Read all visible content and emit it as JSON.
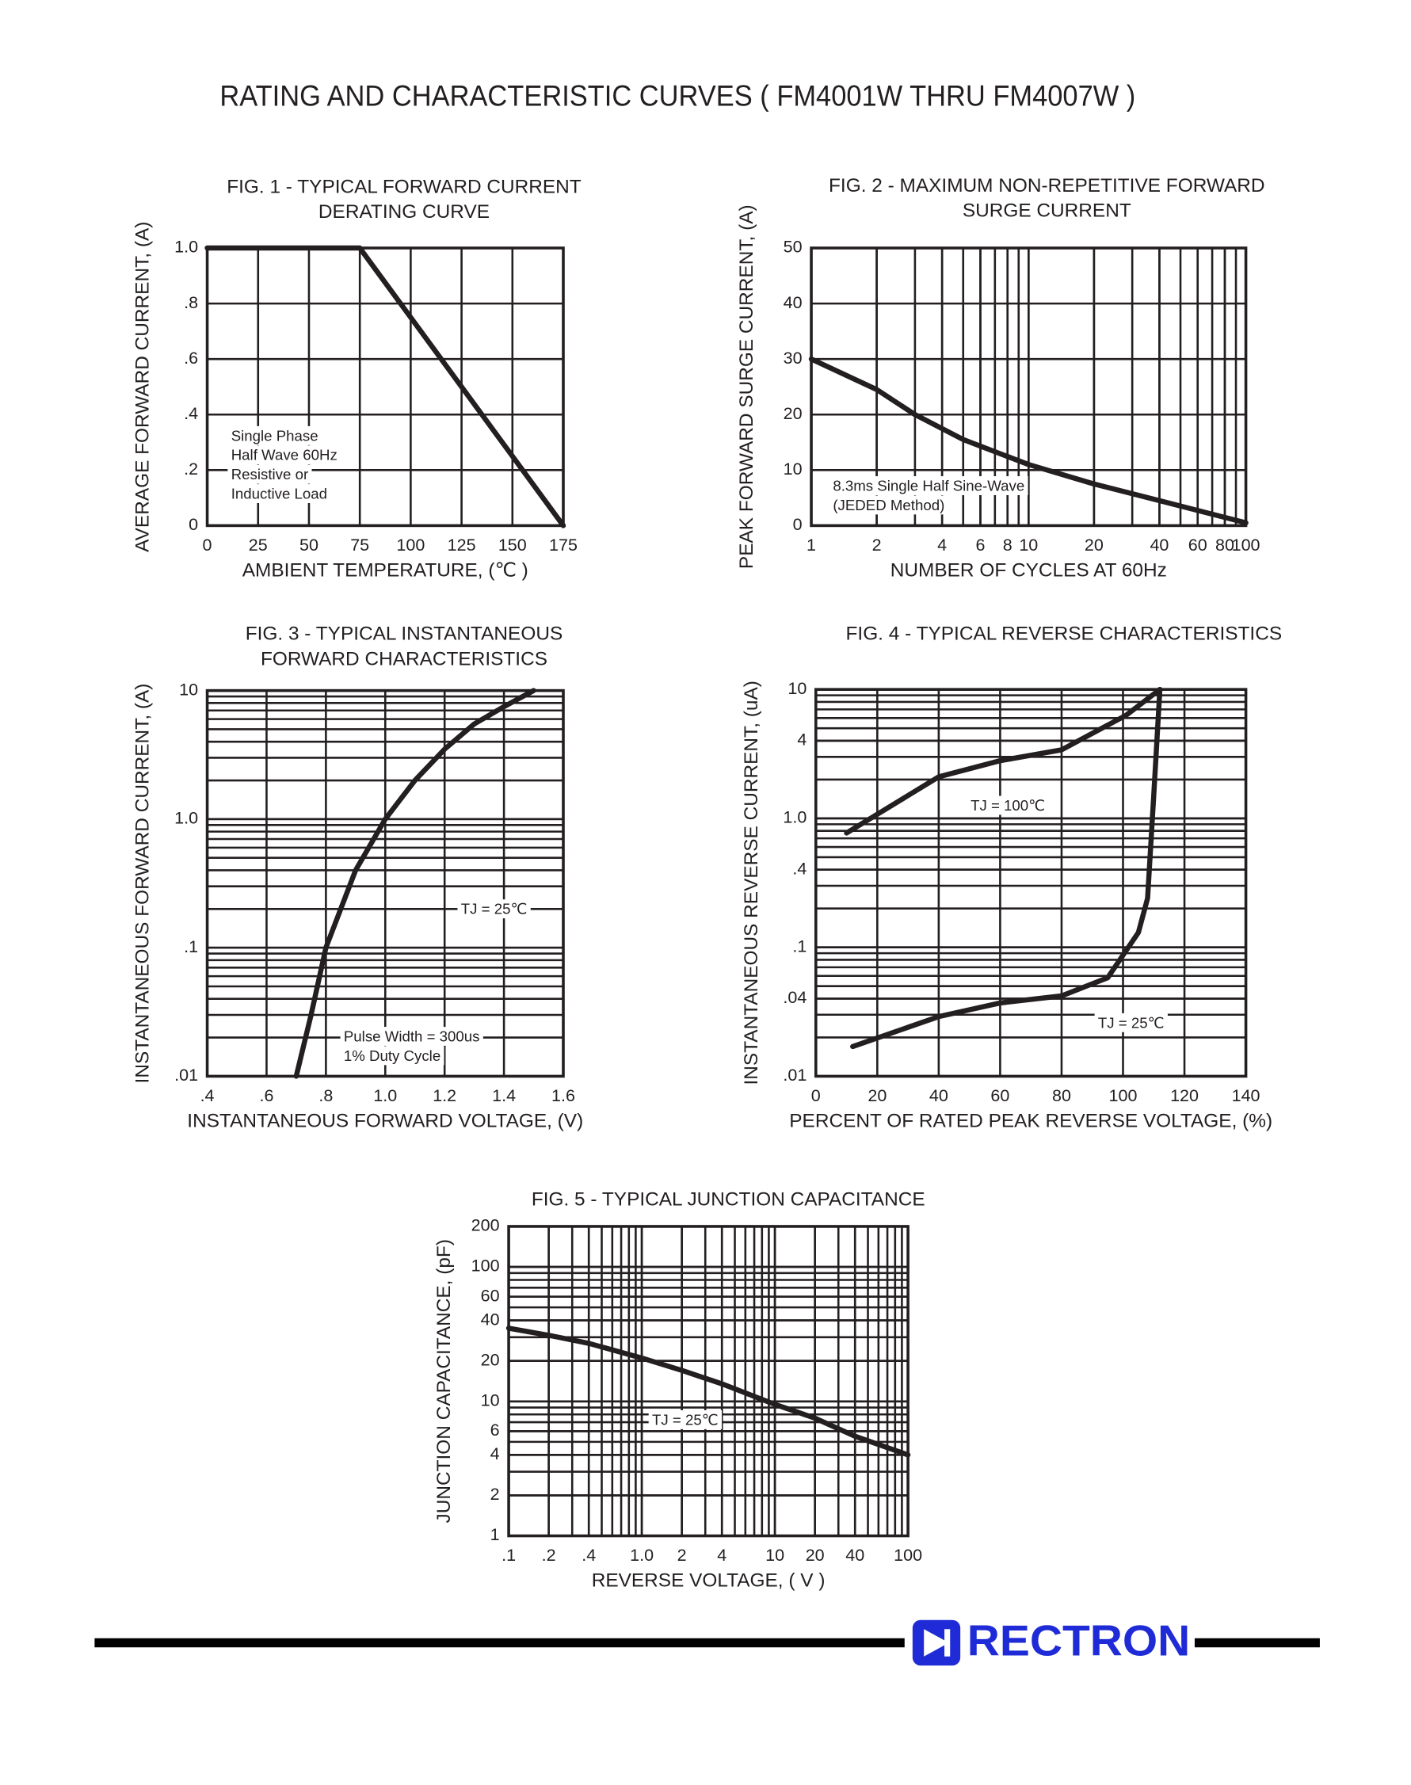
{
  "title": "RATING AND CHARACTERISTIC CURVES ( FM4001W THRU FM4007W )",
  "footer": {
    "brand": "RECTRON"
  },
  "chart_data": [
    {
      "type": "line",
      "title": [
        "FIG. 1 - TYPICAL FORWARD CURRENT",
        "DERATING CURVE"
      ],
      "x_label": "AMBIENT TEMPERATURE, (℃ )",
      "y_label": "AVERAGE FORWARD CURRENT, (A)",
      "xlim": [
        0,
        175
      ],
      "xticks": [
        0,
        25,
        50,
        75,
        100,
        125,
        150,
        175
      ],
      "ylim": [
        0,
        1
      ],
      "yticks": [
        0,
        {
          "value": 0.2,
          "label": ".2"
        },
        {
          "value": 0.4,
          "label": ".4"
        },
        {
          "value": 0.6,
          "label": ".6"
        },
        {
          "value": 0.8,
          "label": ".8"
        },
        {
          "value": 1,
          "label": "1.0"
        }
      ],
      "grid": true,
      "annotations": [
        "Single Phase",
        "Half Wave 60Hz",
        "Resistive or",
        "Inductive Load"
      ],
      "series": [
        {
          "color": "#231f20",
          "x": [
            0,
            75,
            175
          ],
          "values": [
            1,
            1,
            0
          ]
        }
      ]
    },
    {
      "type": "line",
      "title": [
        "FIG. 2 - MAXIMUM NON-REPETITIVE FORWARD",
        "SURGE CURRENT"
      ],
      "x_label": "NUMBER OF CYCLES AT 60Hz",
      "y_label": "PEAK FORWARD SURGE CURRENT, (A)",
      "xscale": "log",
      "xlim": [
        1,
        100
      ],
      "xticks": [
        1,
        2,
        4,
        6,
        8,
        10,
        20,
        40,
        60,
        80,
        100
      ],
      "ylim": [
        0,
        50
      ],
      "yticks": [
        0,
        10,
        20,
        30,
        40,
        50
      ],
      "grid": true,
      "annotations": [
        "8.3ms Single Half Sine-Wave",
        "(JEDED Method)"
      ],
      "series": [
        {
          "color": "#231f20",
          "x": [
            1,
            2,
            3,
            5,
            10,
            20,
            40,
            100
          ],
          "values": [
            30,
            24.5,
            20,
            15.5,
            11,
            7.5,
            4.5,
            0.5
          ]
        }
      ]
    },
    {
      "type": "line",
      "title": [
        "FIG. 3 - TYPICAL INSTANTANEOUS",
        "FORWARD CHARACTERISTICS"
      ],
      "x_label": "INSTANTANEOUS FORWARD VOLTAGE, (V)",
      "y_label": "INSTANTANEOUS FORWARD CURRENT, (A)",
      "xlim": [
        0.4,
        1.6
      ],
      "xticks": [
        {
          "value": 0.4,
          "label": ".4"
        },
        {
          "value": 0.6,
          "label": ".6"
        },
        {
          "value": 0.8,
          "label": ".8"
        },
        {
          "value": 1,
          "label": "1.0"
        },
        1.2,
        1.4,
        1.6
      ],
      "yscale": "log",
      "ylim": [
        0.01,
        10
      ],
      "yticks": [
        {
          "value": 0.01,
          "label": ".01"
        },
        {
          "value": 0.1,
          "label": ".1"
        },
        {
          "value": 1,
          "label": "1.0"
        },
        10
      ],
      "grid": true,
      "annotations": [
        "TJ = 25℃",
        "Pulse Width = 300us",
        "1% Duty Cycle"
      ],
      "series": [
        {
          "color": "#231f20",
          "x": [
            0.7,
            0.75,
            0.8,
            0.9,
            1.0,
            1.1,
            1.2,
            1.3,
            1.4,
            1.5
          ],
          "values": [
            0.01,
            0.03,
            0.1,
            0.4,
            1.0,
            2.0,
            3.5,
            5.5,
            7.5,
            10
          ]
        }
      ]
    },
    {
      "type": "line",
      "title": [
        "FIG. 4 - TYPICAL REVERSE CHARACTERISTICS"
      ],
      "x_label": "PERCENT OF RATED PEAK REVERSE VOLTAGE, (%)",
      "y_label": "INSTANTANEOUS REVERSE CURRENT, (uA)",
      "xlim": [
        0,
        140
      ],
      "xticks": [
        0,
        20,
        40,
        60,
        80,
        100,
        120,
        140
      ],
      "yscale": "log",
      "ylim": [
        0.01,
        10
      ],
      "yticks": [
        {
          "value": 0.01,
          "label": ".01"
        },
        {
          "value": 0.04,
          "label": ".04"
        },
        {
          "value": 0.1,
          "label": ".1"
        },
        {
          "value": 0.4,
          "label": ".4"
        },
        {
          "value": 1,
          "label": "1.0"
        },
        4,
        10
      ],
      "grid": true,
      "series": [
        {
          "name": "TJ = 100℃",
          "color": "#231f20",
          "x": [
            10,
            40,
            60,
            80,
            101,
            112
          ],
          "values": [
            0.77,
            2.1,
            2.8,
            3.4,
            6.3,
            10
          ]
        },
        {
          "name": "TJ = 25℃",
          "color": "#231f20",
          "x": [
            12,
            40,
            60,
            80,
            95,
            105,
            108,
            110,
            112
          ],
          "values": [
            0.017,
            0.029,
            0.037,
            0.042,
            0.058,
            0.13,
            0.24,
            1.5,
            10
          ]
        }
      ]
    },
    {
      "type": "line",
      "title": [
        "FIG. 5 - TYPICAL JUNCTION CAPACITANCE"
      ],
      "x_label": "REVERSE VOLTAGE, ( V )",
      "y_label": "JUNCTION CAPACITANCE, (pF)",
      "xscale": "log",
      "xlim": [
        0.1,
        100
      ],
      "xticks": [
        {
          "value": 0.1,
          "label": ".1"
        },
        {
          "value": 0.2,
          "label": ".2"
        },
        {
          "value": 0.4,
          "label": ".4"
        },
        {
          "value": 1,
          "label": "1.0"
        },
        2,
        4,
        10,
        20,
        40,
        100
      ],
      "yscale": "log",
      "ylim": [
        1,
        200
      ],
      "yticks": [
        1,
        2,
        4,
        6,
        10,
        20,
        40,
        60,
        100,
        200
      ],
      "grid": true,
      "annotations": [
        "TJ = 25℃"
      ],
      "series": [
        {
          "color": "#231f20",
          "x": [
            0.1,
            0.2,
            0.4,
            1,
            2,
            4,
            10,
            20,
            40,
            100
          ],
          "values": [
            35,
            31,
            27,
            21,
            17,
            13.5,
            9.5,
            7.5,
            5.5,
            4
          ]
        }
      ]
    }
  ]
}
